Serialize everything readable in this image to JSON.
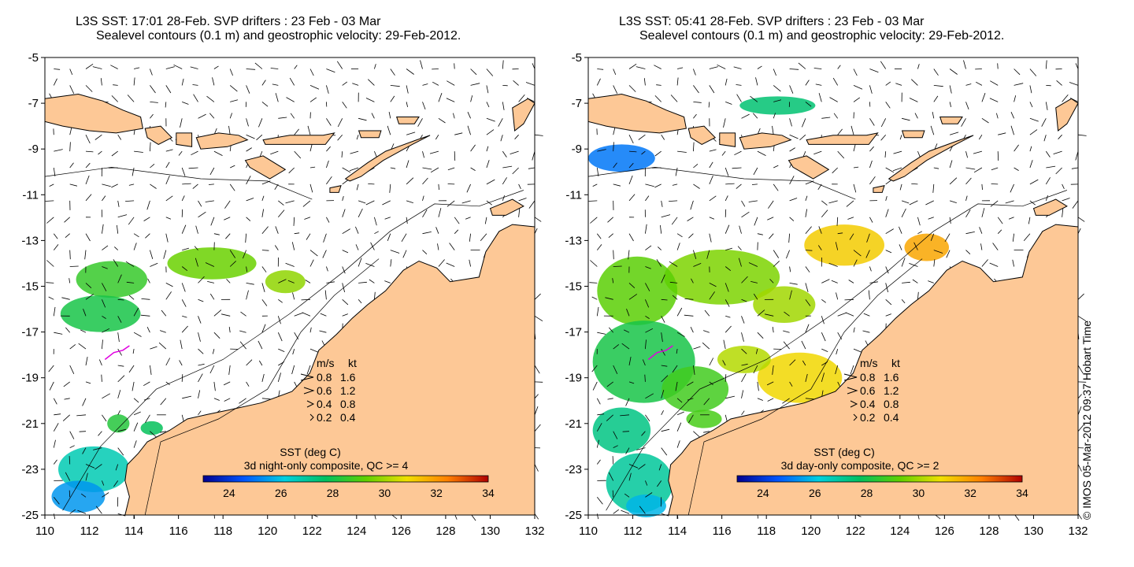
{
  "panels": [
    {
      "title_line1": "L3S SST: 17:01 28-Feb. SVP drifters : 23 Feb - 03 Mar",
      "title_line2": "Sealevel contours (0.1 m) and geostrophic velocity: 29-Feb-2012.",
      "colorbar_title": "SST (deg C)",
      "colorbar_subtitle": "3d night-only composite, QC >= 4",
      "sst_patches": [
        {
          "lon": 113.0,
          "lat": -14.7,
          "rx": 1.6,
          "ry": 0.8,
          "value": 28.6
        },
        {
          "lon": 117.5,
          "lat": -14.0,
          "rx": 2.0,
          "ry": 0.7,
          "value": 29.4
        },
        {
          "lon": 120.8,
          "lat": -14.8,
          "rx": 0.9,
          "ry": 0.5,
          "value": 29.8
        },
        {
          "lon": 112.5,
          "lat": -16.2,
          "rx": 1.8,
          "ry": 0.8,
          "value": 28.1
        },
        {
          "lon": 113.3,
          "lat": -21.0,
          "rx": 0.5,
          "ry": 0.4,
          "value": 28.3
        },
        {
          "lon": 112.2,
          "lat": -23.0,
          "rx": 1.6,
          "ry": 1.0,
          "value": 26.7
        },
        {
          "lon": 111.5,
          "lat": -24.2,
          "rx": 1.2,
          "ry": 0.7,
          "value": 25.4
        },
        {
          "lon": 114.8,
          "lat": -21.2,
          "rx": 0.5,
          "ry": 0.3,
          "value": 27.8
        }
      ]
    },
    {
      "title_line1": "L3S SST: 05:41 28-Feb. SVP drifters : 23 Feb - 03 Mar",
      "title_line2": "Sealevel contours (0.1 m) and geostrophic velocity: 29-Feb-2012.",
      "colorbar_title": "SST (deg C)",
      "colorbar_subtitle": "3d day-only composite, QC >= 2",
      "sst_patches": [
        {
          "lon": 111.5,
          "lat": -9.4,
          "rx": 1.5,
          "ry": 0.6,
          "value": 25.0
        },
        {
          "lon": 118.5,
          "lat": -7.1,
          "rx": 1.7,
          "ry": 0.4,
          "value": 27.5
        },
        {
          "lon": 121.5,
          "lat": -13.2,
          "rx": 1.8,
          "ry": 0.9,
          "value": 31.2
        },
        {
          "lon": 125.2,
          "lat": -13.3,
          "rx": 1.0,
          "ry": 0.6,
          "value": 31.8
        },
        {
          "lon": 116.0,
          "lat": -14.6,
          "rx": 2.6,
          "ry": 1.2,
          "value": 29.6
        },
        {
          "lon": 112.2,
          "lat": -15.2,
          "rx": 1.8,
          "ry": 1.5,
          "value": 29.2
        },
        {
          "lon": 118.8,
          "lat": -15.8,
          "rx": 1.4,
          "ry": 0.8,
          "value": 30.0
        },
        {
          "lon": 112.5,
          "lat": -18.3,
          "rx": 2.3,
          "ry": 1.8,
          "value": 28.1
        },
        {
          "lon": 119.5,
          "lat": -19.0,
          "rx": 1.9,
          "ry": 1.1,
          "value": 31.0
        },
        {
          "lon": 117.0,
          "lat": -18.2,
          "rx": 1.2,
          "ry": 0.6,
          "value": 30.2
        },
        {
          "lon": 114.8,
          "lat": -19.5,
          "rx": 1.5,
          "ry": 1.0,
          "value": 28.8
        },
        {
          "lon": 111.5,
          "lat": -21.3,
          "rx": 1.3,
          "ry": 1.0,
          "value": 27.3
        },
        {
          "lon": 112.3,
          "lat": -23.6,
          "rx": 1.5,
          "ry": 1.3,
          "value": 27.0
        },
        {
          "lon": 112.6,
          "lat": -24.6,
          "rx": 0.9,
          "ry": 0.5,
          "value": 25.8
        },
        {
          "lon": 115.2,
          "lat": -20.8,
          "rx": 0.8,
          "ry": 0.4,
          "value": 28.9
        }
      ]
    }
  ],
  "map": {
    "lon_range": [
      110,
      132
    ],
    "lat_range": [
      -25,
      -5
    ],
    "lon_ticks": [
      "110",
      "112",
      "114",
      "116",
      "118",
      "120",
      "122",
      "124",
      "126",
      "128",
      "130",
      "132"
    ],
    "lat_ticks": [
      "-5",
      "-7",
      "-9",
      "-11",
      "-13",
      "-15",
      "-17",
      "-19",
      "-21",
      "-23",
      "-25"
    ],
    "land_color": "#fdc896",
    "ocean_color": "#ffffff"
  },
  "colorbar": {
    "range": [
      23,
      34
    ],
    "tick_labels": [
      "24",
      "26",
      "28",
      "30",
      "32",
      "34"
    ],
    "colors": [
      "#00008f",
      "#0055ff",
      "#00d0e0",
      "#00c060",
      "#60d000",
      "#f0e000",
      "#ff8000",
      "#b00000"
    ]
  },
  "speed_legend": {
    "header_ms": "m/s",
    "header_kt": "kt",
    "rows": [
      {
        "ms": "0.8",
        "kt": "1.6"
      },
      {
        "ms": "0.6",
        "kt": "1.2"
      },
      {
        "ms": "0.4",
        "kt": "0.8"
      },
      {
        "ms": "0.2",
        "kt": "0.4"
      }
    ]
  },
  "credit": "© IMOS 05-Mar-2012 09:37 Hobart Time",
  "drifter_color": "#e000e0"
}
